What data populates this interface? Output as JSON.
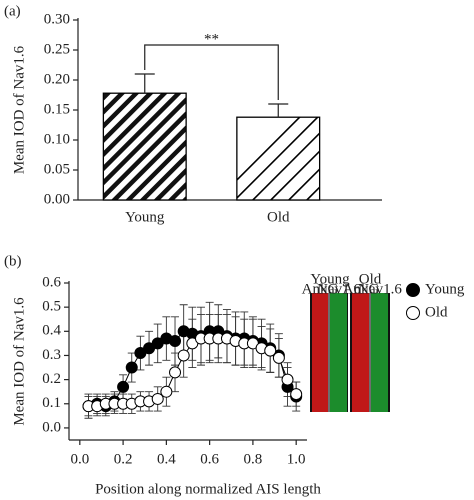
{
  "chart_data": [
    {
      "type": "bar",
      "panel": "(a)",
      "ylabel": "Mean IOD of Nav1.6",
      "categories": [
        "Young",
        "Old"
      ],
      "values": [
        0.178,
        0.138
      ],
      "errors": [
        0.032,
        0.022
      ],
      "color": "#000000",
      "ylim": [
        0,
        0.3
      ],
      "yticks": [
        {
          "value": 0,
          "label": "0.00"
        },
        {
          "value": 0.05,
          "label": "0.05"
        },
        {
          "value": 0.1,
          "label": "0.10"
        },
        {
          "value": 0.15,
          "label": "0.15"
        },
        {
          "value": 0.2,
          "label": "0.20"
        },
        {
          "value": 0.25,
          "label": "0.25"
        },
        {
          "value": 0.3,
          "label": "0.30"
        }
      ],
      "annotation": "**"
    },
    {
      "type": "line",
      "panel": "(b)",
      "ylabel": "Mean IOD of Nav1.6",
      "xlabel": "Position along normalized AIS length",
      "x": [
        0.04,
        0.08,
        0.12,
        0.16,
        0.2,
        0.24,
        0.28,
        0.32,
        0.36,
        0.4,
        0.44,
        0.48,
        0.52,
        0.56,
        0.6,
        0.64,
        0.68,
        0.72,
        0.76,
        0.8,
        0.84,
        0.88,
        0.92,
        0.96,
        1.0
      ],
      "series": [
        {
          "name": "Young",
          "color": "#000000",
          "fill": "#000000",
          "values": [
            0.09,
            0.1,
            0.09,
            0.11,
            0.17,
            0.25,
            0.31,
            0.33,
            0.35,
            0.37,
            0.36,
            0.4,
            0.39,
            0.38,
            0.4,
            0.4,
            0.38,
            0.37,
            0.37,
            0.36,
            0.35,
            0.33,
            0.3,
            0.17,
            0.13
          ],
          "errors": [
            0.05,
            0.04,
            0.04,
            0.04,
            0.05,
            0.06,
            0.07,
            0.07,
            0.08,
            0.09,
            0.1,
            0.11,
            0.11,
            0.12,
            0.12,
            0.11,
            0.11,
            0.11,
            0.11,
            0.1,
            0.1,
            0.1,
            0.09,
            0.08,
            0.06
          ]
        },
        {
          "name": "Old",
          "color": "#000000",
          "fill": "#ffffff",
          "values": [
            0.09,
            0.09,
            0.1,
            0.1,
            0.1,
            0.1,
            0.11,
            0.11,
            0.12,
            0.15,
            0.23,
            0.3,
            0.35,
            0.37,
            0.37,
            0.37,
            0.37,
            0.36,
            0.35,
            0.35,
            0.33,
            0.32,
            0.29,
            0.2,
            0.14
          ],
          "errors": [
            0.04,
            0.04,
            0.04,
            0.04,
            0.04,
            0.04,
            0.04,
            0.04,
            0.05,
            0.06,
            0.08,
            0.09,
            0.1,
            0.1,
            0.1,
            0.1,
            0.1,
            0.1,
            0.1,
            0.1,
            0.09,
            0.09,
            0.08,
            0.07,
            0.05
          ]
        }
      ],
      "xlim": [
        -0.05,
        1.05
      ],
      "xticks": [
        {
          "value": 0,
          "label": "0.0"
        },
        0.2,
        0.4,
        0.6,
        0.8,
        {
          "value": 1,
          "label": "1.0"
        }
      ],
      "ylim": [
        -0.05,
        0.6
      ],
      "yticks": [
        {
          "value": 0,
          "label": "0.0"
        },
        0.1,
        0.2,
        0.3,
        0.4,
        0.5,
        0.6
      ],
      "inset": {
        "groups": [
          "Young",
          "Old"
        ],
        "channels": [
          "AnkG",
          "Nav1.6",
          "AnkG",
          "Nav1.6"
        ]
      }
    }
  ]
}
